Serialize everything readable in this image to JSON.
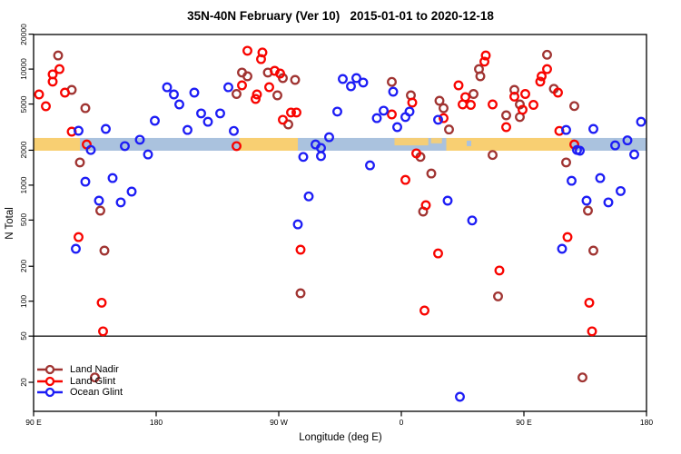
{
  "title": "35N-40N February (Ver 10)   2015-01-01 to 2020-12-18",
  "x_axis": {
    "label": "Longitude (deg E)",
    "ticks": [
      {
        "lon": 90,
        "label": "90 E"
      },
      {
        "lon": 180,
        "label": "180"
      },
      {
        "lon": 270,
        "label": "90 W"
      },
      {
        "lon": 360,
        "label": "0"
      },
      {
        "lon": 450,
        "label": "90 E"
      },
      {
        "lon": 540,
        "label": "180"
      }
    ]
  },
  "y_axis": {
    "label": "N Total",
    "ticks": [
      20000,
      10000,
      5000,
      2000,
      1000,
      500,
      200,
      100,
      50,
      20
    ]
  },
  "legend": [
    {
      "id": "land-nadir",
      "label": "Land Nadir",
      "color_key": "land_nadir"
    },
    {
      "id": "land-glint",
      "label": "Land Glint",
      "color_key": "land_glint"
    },
    {
      "id": "ocean-glint",
      "label": "Ocean Glint",
      "color_key": "ocean_glint"
    }
  ],
  "colors": {
    "land_nadir": "#a03432",
    "land_glint": "#f80400",
    "ocean_glint": "#1d1df5",
    "band_orange": "#f8cf72",
    "band_blue": "#aac2de",
    "axis": "#1a1a1a"
  },
  "chart_data": {
    "type": "scatter",
    "title": "35N-40N February (Ver 10)   2015-01-01 to 2020-12-18",
    "xlabel": "Longitude (deg E)",
    "ylabel": "N Total",
    "x_axis_note": "longitude axis spans 450 deg: 90E-180-90W-0-90E-180, stored as 90..540",
    "xlim": [
      90,
      540
    ],
    "ylim_log": [
      11,
      20000
    ],
    "grid": false,
    "legend_position": "bottom-left",
    "hline": {
      "n": 50
    },
    "band": {
      "n_range": [
        1980,
        2550
      ],
      "segments": [
        {
          "from": 90,
          "to": 124,
          "c": "orange"
        },
        {
          "from": 124,
          "to": 241,
          "c": "blue"
        },
        {
          "from": 241,
          "to": 284,
          "c": "orange"
        },
        {
          "from": 284,
          "to": 353,
          "c": "blue"
        },
        {
          "from": 353,
          "to": 393,
          "c": "mixed"
        },
        {
          "from": 393,
          "to": 485,
          "c": "orange"
        },
        {
          "from": 485,
          "to": 540,
          "c": "blue"
        }
      ]
    },
    "series": [
      {
        "name": "Land Nadir",
        "color_key": "land_nadir",
        "points": [
          [
            108,
            13100
          ],
          [
            118,
            6620
          ],
          [
            128,
            4610
          ],
          [
            124,
            1570
          ],
          [
            139,
            603
          ],
          [
            142,
            273
          ],
          [
            135,
            22
          ],
          [
            239,
            6100
          ],
          [
            243,
            9330
          ],
          [
            247,
            8670
          ],
          [
            262,
            9330
          ],
          [
            273,
            8370
          ],
          [
            282,
            8070
          ],
          [
            269,
            5940
          ],
          [
            277,
            3340
          ],
          [
            286,
            117
          ],
          [
            353,
            7760
          ],
          [
            367,
            5940
          ],
          [
            374,
            1750
          ],
          [
            376,
            592
          ],
          [
            382,
            1260
          ],
          [
            388,
            5330
          ],
          [
            391,
            4610
          ],
          [
            395,
            3020
          ],
          [
            413,
            6100
          ],
          [
            417,
            10000
          ],
          [
            418,
            8670
          ],
          [
            427,
            1820
          ],
          [
            431,
            110
          ],
          [
            437,
            4000
          ],
          [
            443,
            6620
          ],
          [
            447,
            4960
          ],
          [
            447,
            3860
          ],
          [
            467,
            13300
          ],
          [
            472,
            6770
          ],
          [
            481,
            1570
          ],
          [
            487,
            4800
          ],
          [
            493,
            22
          ],
          [
            497,
            603
          ],
          [
            501,
            273
          ]
        ]
      },
      {
        "name": "Land Glint",
        "color_key": "land_glint",
        "points": [
          [
            94,
            6050
          ],
          [
            99,
            4790
          ],
          [
            104,
            9000
          ],
          [
            104,
            7800
          ],
          [
            109,
            10000
          ],
          [
            113,
            6270
          ],
          [
            118,
            2890
          ],
          [
            123,
            357
          ],
          [
            129,
            2240
          ],
          [
            140,
            97
          ],
          [
            141,
            55
          ],
          [
            239,
            2170
          ],
          [
            243,
            7240
          ],
          [
            247,
            14400
          ],
          [
            253,
            5530
          ],
          [
            254,
            6050
          ],
          [
            257,
            12200
          ],
          [
            258,
            13900
          ],
          [
            263,
            6990
          ],
          [
            267,
            9660
          ],
          [
            271,
            9160
          ],
          [
            273,
            3660
          ],
          [
            279,
            4230
          ],
          [
            283,
            4230
          ],
          [
            286,
            278
          ],
          [
            353,
            4070
          ],
          [
            363,
            1110
          ],
          [
            368,
            5140
          ],
          [
            371,
            1880
          ],
          [
            377,
            83
          ],
          [
            378,
            671
          ],
          [
            387,
            258
          ],
          [
            391,
            3780
          ],
          [
            402,
            7240
          ],
          [
            405,
            4960
          ],
          [
            407,
            5740
          ],
          [
            411,
            4920
          ],
          [
            421,
            11600
          ],
          [
            422,
            13100
          ],
          [
            427,
            4960
          ],
          [
            432,
            184
          ],
          [
            437,
            3160
          ],
          [
            443,
            5790
          ],
          [
            449,
            4460
          ],
          [
            451,
            6100
          ],
          [
            457,
            4920
          ],
          [
            462,
            7800
          ],
          [
            463,
            8670
          ],
          [
            467,
            10000
          ],
          [
            475,
            6270
          ],
          [
            476,
            2930
          ],
          [
            482,
            357
          ],
          [
            487,
            2240
          ],
          [
            498,
            97
          ],
          [
            500,
            55
          ]
        ]
      },
      {
        "name": "Ocean Glint",
        "color_key": "ocean_glint",
        "points": [
          [
            121,
            283
          ],
          [
            123,
            2940
          ],
          [
            128,
            1070
          ],
          [
            132,
            2010
          ],
          [
            138,
            735
          ],
          [
            143,
            3050
          ],
          [
            148,
            1150
          ],
          [
            154,
            710
          ],
          [
            157,
            2170
          ],
          [
            162,
            880
          ],
          [
            168,
            2460
          ],
          [
            174,
            1840
          ],
          [
            179,
            3590
          ],
          [
            188,
            6980
          ],
          [
            193,
            6050
          ],
          [
            197,
            4960
          ],
          [
            203,
            2990
          ],
          [
            208,
            6270
          ],
          [
            213,
            4150
          ],
          [
            218,
            3520
          ],
          [
            227,
            4150
          ],
          [
            233,
            6980
          ],
          [
            237,
            2930
          ],
          [
            284,
            459
          ],
          [
            288,
            1750
          ],
          [
            292,
            800
          ],
          [
            297,
            2240
          ],
          [
            301,
            2090
          ],
          [
            301,
            1780
          ],
          [
            307,
            2590
          ],
          [
            313,
            4300
          ],
          [
            317,
            8220
          ],
          [
            323,
            7110
          ],
          [
            327,
            8370
          ],
          [
            332,
            7660
          ],
          [
            337,
            1480
          ],
          [
            342,
            3780
          ],
          [
            347,
            4380
          ],
          [
            354,
            6390
          ],
          [
            357,
            3160
          ],
          [
            363,
            3860
          ],
          [
            366,
            4300
          ],
          [
            387,
            3660
          ],
          [
            394,
            735
          ],
          [
            403,
            15
          ],
          [
            412,
            496
          ],
          [
            478,
            283
          ],
          [
            481,
            2990
          ],
          [
            485,
            1090
          ],
          [
            489,
            2010
          ],
          [
            491,
            1980
          ],
          [
            496,
            735
          ],
          [
            501,
            3050
          ],
          [
            506,
            1150
          ],
          [
            512,
            710
          ],
          [
            517,
            2200
          ],
          [
            521,
            890
          ],
          [
            526,
            2430
          ],
          [
            531,
            1840
          ],
          [
            536,
            3520
          ]
        ]
      }
    ]
  }
}
